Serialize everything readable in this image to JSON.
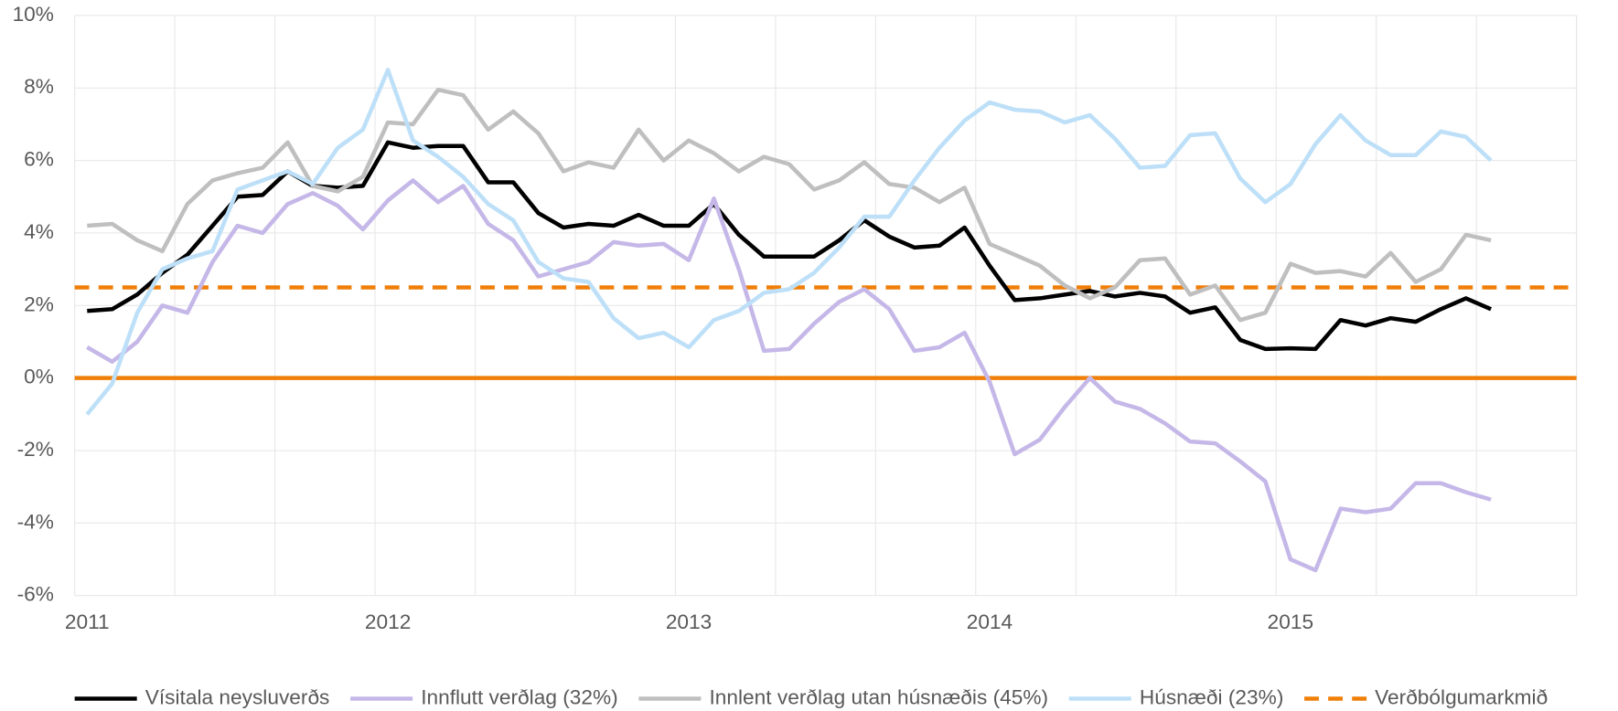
{
  "chart_data": {
    "type": "line",
    "categories": [
      "2011",
      null,
      null,
      null,
      null,
      null,
      null,
      null,
      null,
      null,
      null,
      null,
      "2012",
      null,
      null,
      null,
      null,
      null,
      null,
      null,
      null,
      null,
      null,
      null,
      "2013",
      null,
      null,
      null,
      null,
      null,
      null,
      null,
      null,
      null,
      null,
      null,
      "2014",
      null,
      null,
      null,
      null,
      null,
      null,
      null,
      null,
      null,
      null,
      null,
      "2015",
      null,
      null,
      null,
      null,
      null,
      null,
      null,
      null
    ],
    "series": [
      {
        "name": "Vísitala neysluverðs",
        "color": "#000000",
        "values": [
          1.85,
          1.9,
          2.3,
          2.9,
          3.4,
          4.2,
          5.0,
          5.05,
          5.7,
          5.3,
          5.25,
          5.3,
          6.5,
          6.35,
          6.4,
          6.4,
          5.4,
          5.4,
          4.55,
          4.15,
          4.25,
          4.2,
          4.5,
          4.2,
          4.2,
          4.8,
          3.95,
          3.35,
          3.35,
          3.35,
          3.8,
          4.35,
          3.9,
          3.6,
          3.65,
          4.15,
          3.1,
          2.15,
          2.2,
          2.3,
          2.4,
          2.25,
          2.35,
          2.25,
          1.8,
          1.95,
          1.05,
          0.8,
          0.82,
          0.8,
          1.6,
          1.45,
          1.65,
          1.55,
          1.9,
          2.2,
          1.9
        ]
      },
      {
        "name": "Innflutt verðlag (32%)",
        "color": "#c5b8e8",
        "values": [
          0.85,
          0.45,
          1.0,
          2.0,
          1.8,
          3.2,
          4.2,
          4.0,
          4.8,
          5.1,
          4.75,
          4.1,
          4.9,
          5.45,
          4.85,
          5.3,
          4.25,
          3.8,
          2.8,
          3.0,
          3.2,
          3.75,
          3.65,
          3.7,
          3.25,
          4.95,
          3.0,
          0.75,
          0.8,
          1.5,
          2.1,
          2.45,
          1.9,
          0.75,
          0.85,
          1.25,
          -0.1,
          -2.1,
          -1.7,
          -0.8,
          0.0,
          -0.65,
          -0.85,
          -1.25,
          -1.75,
          -1.8,
          -2.3,
          -2.85,
          -5.0,
          -5.3,
          -3.6,
          -3.7,
          -3.6,
          -2.9,
          -2.9,
          -3.15,
          -3.35
        ]
      },
      {
        "name": "Innlent verðlag utan húsnæðis (45%)",
        "color": "#bfbfbf",
        "values": [
          4.2,
          4.25,
          3.8,
          3.5,
          4.8,
          5.45,
          5.65,
          5.8,
          6.5,
          5.3,
          5.15,
          5.55,
          7.05,
          7.0,
          7.95,
          7.8,
          6.85,
          7.35,
          6.75,
          5.7,
          5.95,
          5.8,
          6.85,
          6.0,
          6.55,
          6.2,
          5.7,
          6.1,
          5.9,
          5.2,
          5.45,
          5.95,
          5.35,
          5.25,
          4.85,
          5.25,
          3.7,
          3.4,
          3.1,
          2.55,
          2.2,
          2.5,
          3.25,
          3.3,
          2.3,
          2.55,
          1.6,
          1.8,
          3.15,
          2.9,
          2.95,
          2.8,
          3.45,
          2.65,
          3.0,
          3.95,
          3.8
        ]
      },
      {
        "name": "Húsnæði (23%)",
        "color": "#bde0f8",
        "values": [
          -1.0,
          -0.15,
          1.8,
          3.0,
          3.3,
          3.5,
          5.2,
          5.45,
          5.7,
          5.35,
          6.35,
          6.85,
          8.5,
          6.55,
          6.1,
          5.55,
          4.8,
          4.35,
          3.2,
          2.75,
          2.65,
          1.65,
          1.1,
          1.25,
          0.85,
          1.6,
          1.85,
          2.35,
          2.45,
          2.9,
          3.6,
          4.45,
          4.45,
          5.45,
          6.35,
          7.1,
          7.6,
          7.4,
          7.35,
          7.05,
          7.25,
          6.6,
          5.8,
          5.85,
          6.7,
          6.75,
          5.5,
          4.85,
          5.35,
          6.45,
          7.25,
          6.55,
          6.15,
          6.15,
          6.8,
          6.65,
          6.0
        ]
      }
    ],
    "reference_lines": [
      {
        "name": "Verðbólgumarkmið",
        "value": 2.5,
        "color": "#f07f09",
        "dashed": true
      },
      {
        "value": 0,
        "color": "#f07f09",
        "dashed": false
      }
    ],
    "ylim": [
      -6,
      10
    ],
    "yticks": [
      {
        "value": -6,
        "label": "-6%"
      },
      {
        "value": -4,
        "label": "-4%"
      },
      {
        "value": -2,
        "label": "-2%"
      },
      {
        "value": 0,
        "label": "0%"
      },
      {
        "value": 2,
        "label": "2%"
      },
      {
        "value": 4,
        "label": "4%"
      },
      {
        "value": 6,
        "label": "6%"
      },
      {
        "value": 8,
        "label": "8%"
      },
      {
        "value": 10,
        "label": "10%"
      }
    ],
    "grid": true,
    "legend": "bottom"
  }
}
